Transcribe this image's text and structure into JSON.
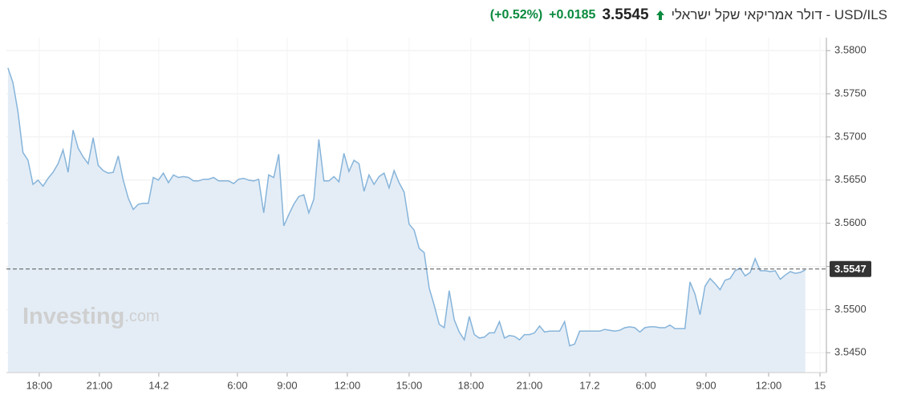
{
  "header": {
    "title": "USD/ILS - דולר אמריקאי שקל ישראלי",
    "price": "3.5545",
    "change": "+0.0185",
    "change_pct": "(+0.52%)"
  },
  "watermark": {
    "brand": "Investing",
    "suffix": ".com"
  },
  "chart_data": {
    "type": "area",
    "color": "#86b4da",
    "fill": "#e4edf6",
    "x": [
      0,
      1,
      2,
      3,
      4,
      5,
      6,
      7,
      8,
      9,
      10,
      11,
      12,
      13,
      14,
      15,
      16,
      17,
      18,
      19,
      20,
      21,
      22,
      23,
      24,
      25,
      26,
      27,
      28,
      29,
      30,
      31,
      32,
      33,
      34,
      35,
      36,
      37,
      38,
      39,
      40,
      41,
      42,
      43,
      44,
      45,
      46,
      47,
      48,
      49,
      50,
      51,
      52,
      53,
      54,
      55,
      56,
      57,
      58,
      59,
      60,
      61,
      62,
      63,
      64,
      65,
      66,
      67,
      68,
      69,
      70,
      71,
      72,
      73,
      74,
      75,
      76,
      77,
      78,
      79,
      80,
      81,
      82,
      83,
      84,
      85,
      86,
      87,
      88,
      89,
      90,
      91,
      92,
      93,
      94,
      95,
      96,
      97,
      98,
      99,
      100,
      101,
      102,
      103,
      104,
      105,
      106,
      107,
      108,
      109,
      110,
      111,
      112,
      113,
      114,
      115,
      116,
      117,
      118,
      119,
      120,
      121,
      122,
      123,
      124,
      125,
      126,
      127,
      128,
      129,
      130,
      131,
      132,
      133,
      134,
      135,
      136,
      137,
      138,
      139,
      140,
      141,
      142,
      143,
      144,
      145,
      146,
      147,
      148,
      149,
      150,
      151,
      152,
      153,
      154,
      155,
      156,
      157,
      158,
      159
    ],
    "values": [
      3.578,
      3.5763,
      3.5729,
      3.5682,
      3.5673,
      3.5645,
      3.565,
      3.5643,
      3.5652,
      3.5659,
      3.5669,
      3.5685,
      3.5659,
      3.5708,
      3.5687,
      3.5677,
      3.5669,
      3.5699,
      3.5667,
      3.5661,
      3.5658,
      3.5659,
      3.5678,
      3.565,
      3.5629,
      3.5616,
      3.5622,
      3.5623,
      3.5623,
      3.5653,
      3.565,
      3.5658,
      3.5647,
      3.5656,
      3.5653,
      3.5654,
      3.5653,
      3.5649,
      3.5649,
      3.5651,
      3.5651,
      3.5653,
      3.5649,
      3.5649,
      3.5649,
      3.5646,
      3.5651,
      3.5652,
      3.565,
      3.5649,
      3.5651,
      3.5612,
      3.5656,
      3.5653,
      3.568,
      3.5597,
      3.561,
      3.5622,
      3.5631,
      3.5633,
      3.5612,
      3.5628,
      3.5697,
      3.5649,
      3.5649,
      3.5654,
      3.5648,
      3.5681,
      3.566,
      3.5673,
      3.5669,
      3.5637,
      3.5656,
      3.5645,
      3.5654,
      3.5658,
      3.5641,
      3.5661,
      3.5647,
      3.5636,
      3.5599,
      3.5592,
      3.5571,
      3.5566,
      3.5525,
      3.5505,
      3.5483,
      3.5479,
      3.5522,
      3.5488,
      3.5474,
      3.5465,
      3.5492,
      3.5471,
      3.5467,
      3.5468,
      3.5473,
      3.5473,
      3.5486,
      3.5467,
      3.547,
      3.5469,
      3.5465,
      3.5471,
      3.5471,
      3.5473,
      3.5481,
      3.5474,
      3.5475,
      3.5475,
      3.5475,
      3.5486,
      3.5458,
      3.546,
      3.5475,
      3.5475,
      3.5475,
      3.5475,
      3.5475,
      3.5477,
      3.5476,
      3.5475,
      3.5476,
      3.5479,
      3.548,
      3.5479,
      3.5474,
      3.5479,
      3.548,
      3.548,
      3.5479,
      3.5479,
      3.5482,
      3.5478,
      3.5478,
      3.5478,
      3.5532,
      3.5518,
      3.5494,
      3.5527,
      3.5536,
      3.553,
      3.5523,
      3.5534,
      3.5536,
      3.5545,
      3.5548,
      3.5539,
      3.5543,
      3.5559,
      3.5545,
      3.5545,
      3.5544,
      3.5545,
      3.5535,
      3.554,
      3.5544,
      3.5542,
      3.5543,
      3.5546
    ],
    "xlim": [
      -0.3,
      163.2
    ],
    "xticks": [
      {
        "value": 6.24,
        "label": "18:00"
      },
      {
        "value": 18.24,
        "label": "21:00"
      },
      {
        "value": 30.08,
        "label": "14.2"
      },
      {
        "value": 45.76,
        "label": "6:00"
      },
      {
        "value": 55.68,
        "label": "9:00"
      },
      {
        "value": 67.68,
        "label": "12:00"
      },
      {
        "value": 80,
        "label": "15:00"
      },
      {
        "value": 92.32,
        "label": "18:00"
      },
      {
        "value": 104,
        "label": "21:00"
      },
      {
        "value": 116,
        "label": "17.2"
      },
      {
        "value": 127.2,
        "label": "6:00"
      },
      {
        "value": 139.2,
        "label": "9:00"
      },
      {
        "value": 151.68,
        "label": "12:00"
      },
      {
        "value": 161.92,
        "label": "15"
      }
    ],
    "ylim": [
      3.5427,
      3.5815
    ],
    "yticks": [
      {
        "value": 3.545,
        "label": "3.5450"
      },
      {
        "value": 3.55,
        "label": "3.5500"
      },
      {
        "value": 3.555,
        "label": "3.5550"
      },
      {
        "value": 3.56,
        "label": "3.5600"
      },
      {
        "value": 3.565,
        "label": "3.5650"
      },
      {
        "value": 3.57,
        "label": "3.5700"
      },
      {
        "value": 3.575,
        "label": "3.5750"
      },
      {
        "value": 3.58,
        "label": "3.5800"
      }
    ],
    "reference_line": 3.5547,
    "grid": true
  }
}
